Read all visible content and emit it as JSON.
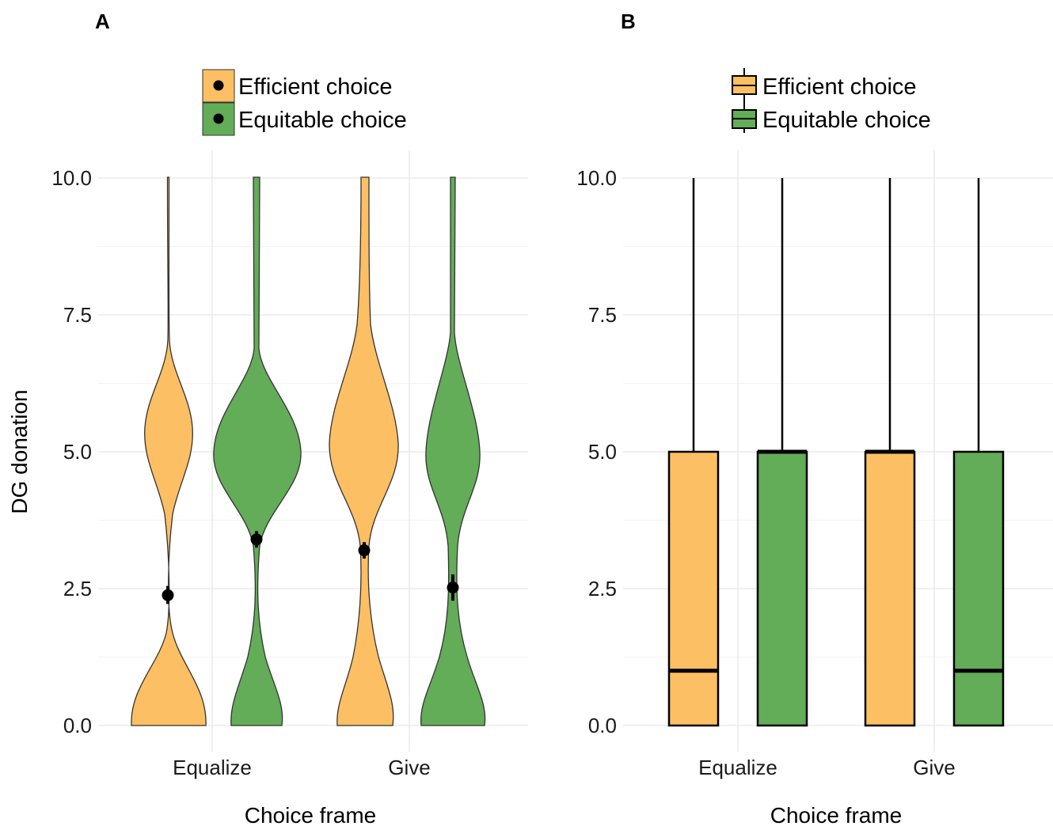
{
  "panels": [
    {
      "letter": "A",
      "legend": {
        "items": [
          "Efficient choice",
          "Equitable choice"
        ]
      },
      "xlabel": "Choice frame",
      "ylabel": "DG donation",
      "yticks": [
        "0.0",
        "2.5",
        "5.0",
        "7.5",
        "10.0"
      ],
      "categories": [
        "Equalize",
        "Give"
      ]
    },
    {
      "letter": "B",
      "legend": {
        "items": [
          "Efficient choice",
          "Equitable choice"
        ]
      },
      "xlabel": "Choice frame",
      "ylabel": "",
      "yticks": [
        "0.0",
        "2.5",
        "5.0",
        "7.5",
        "10.0"
      ],
      "categories": [
        "Equalize",
        "Give"
      ]
    }
  ],
  "colors": {
    "efficient": "#fdbf63",
    "equitable": "#63ac58",
    "grid": "#ebebeb"
  },
  "chart_data": [
    {
      "type": "violin",
      "panel": "A",
      "xlabel": "Choice frame",
      "ylabel": "DG donation",
      "ylim": [
        0,
        10
      ],
      "yticks": [
        0,
        2.5,
        5,
        7.5,
        10
      ],
      "categories": [
        "Equalize",
        "Give"
      ],
      "legend_position": "top",
      "grid": true,
      "series": [
        {
          "name": "Efficient choice",
          "color": "#fdbf63",
          "means": [
            2.38,
            3.2
          ],
          "error_low": [
            2.22,
            3.05
          ],
          "error_high": [
            2.55,
            3.35
          ],
          "max": [
            10,
            10
          ],
          "min": [
            0,
            0
          ]
        },
        {
          "name": "Equitable choice",
          "color": "#63ac58",
          "means": [
            3.4,
            2.52
          ],
          "error_low": [
            3.25,
            2.28
          ],
          "error_high": [
            3.55,
            2.76
          ],
          "max": [
            10,
            10
          ],
          "min": [
            0,
            0
          ]
        }
      ]
    },
    {
      "type": "box",
      "panel": "B",
      "xlabel": "Choice frame",
      "ylabel": "",
      "ylim": [
        0,
        10
      ],
      "yticks": [
        0,
        2.5,
        5,
        7.5,
        10
      ],
      "categories": [
        "Equalize",
        "Give"
      ],
      "legend_position": "top",
      "grid": true,
      "series": [
        {
          "name": "Efficient choice",
          "color": "#fdbf63",
          "boxes": [
            {
              "min": 0,
              "q1": 0,
              "median": 1,
              "q3": 5,
              "max": 10
            },
            {
              "min": 0,
              "q1": 0,
              "median": 5,
              "q3": 5,
              "max": 10
            }
          ]
        },
        {
          "name": "Equitable choice",
          "color": "#63ac58",
          "boxes": [
            {
              "min": 0,
              "q1": 0,
              "median": 5,
              "q3": 5,
              "max": 10
            },
            {
              "min": 0,
              "q1": 0,
              "median": 1,
              "q3": 5,
              "max": 10
            }
          ]
        }
      ]
    }
  ]
}
